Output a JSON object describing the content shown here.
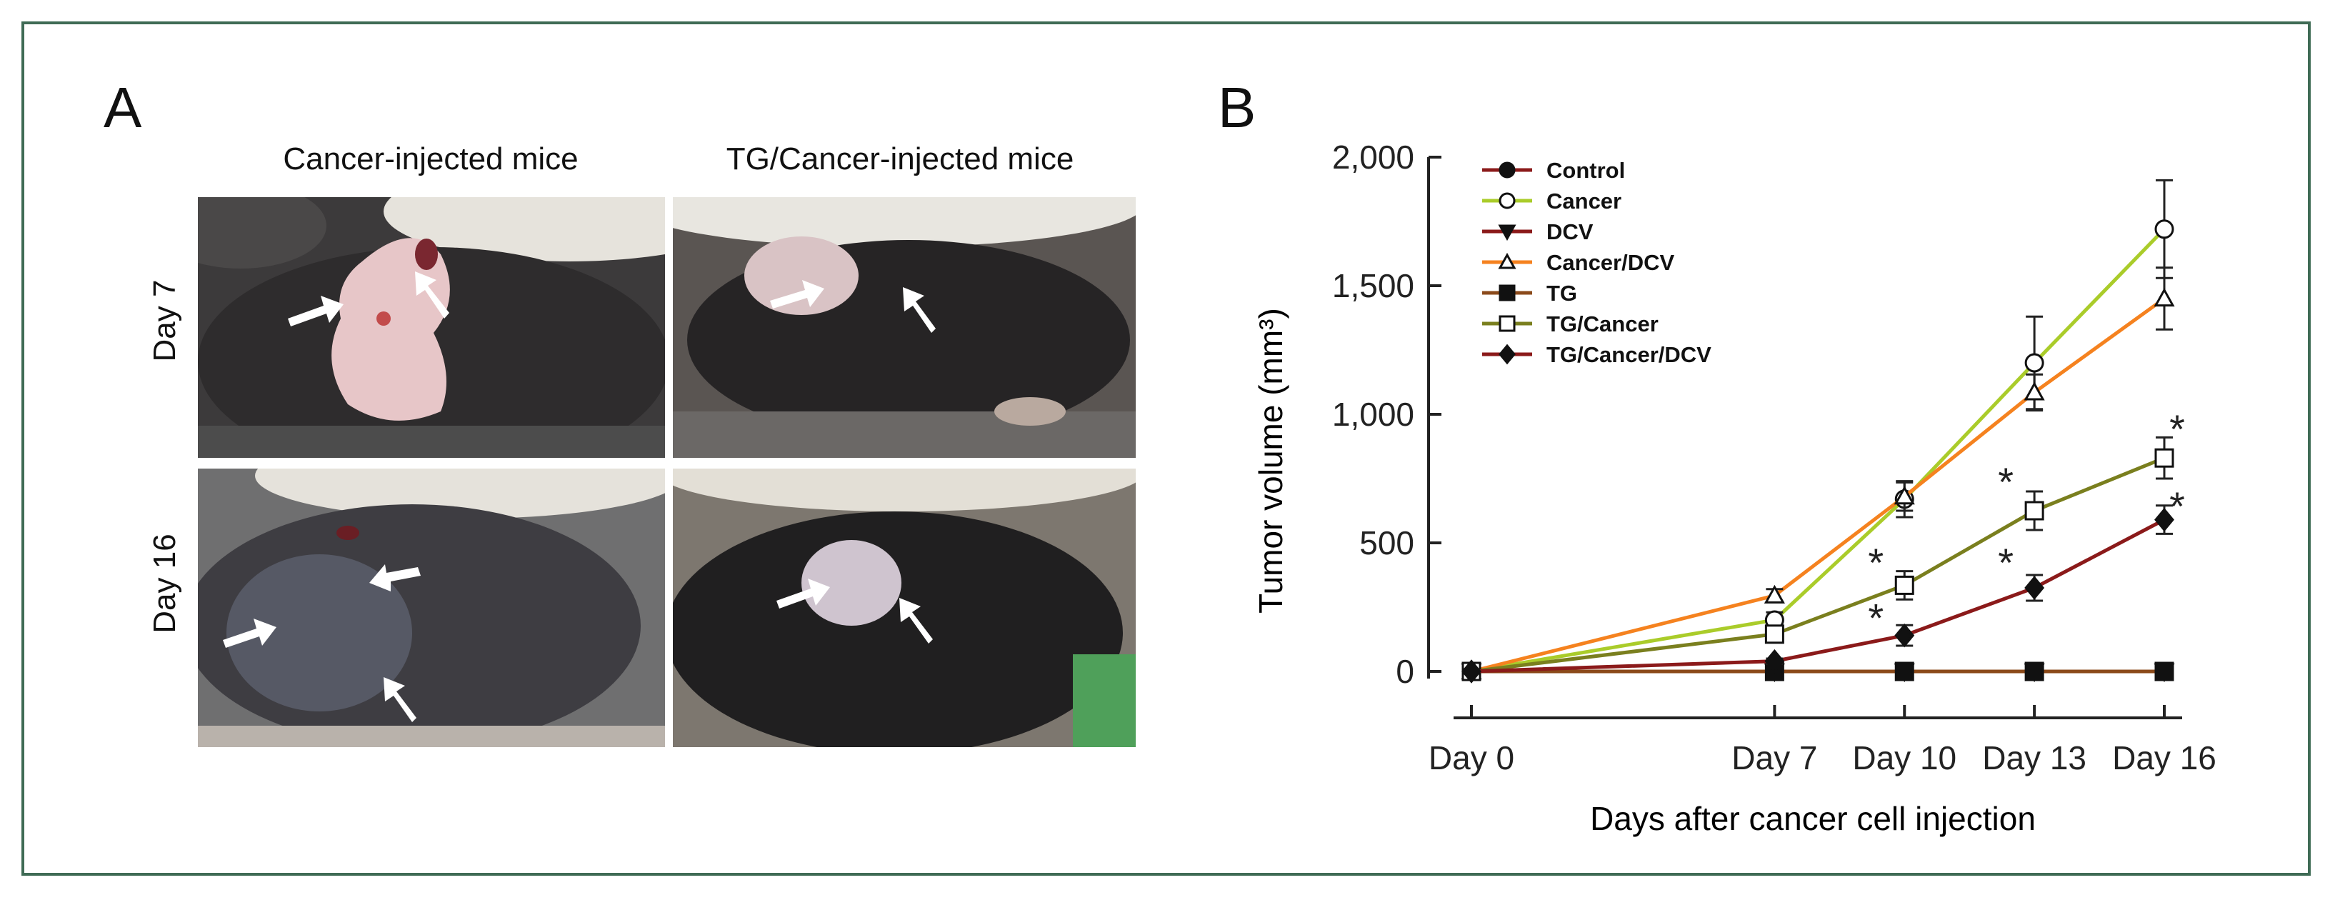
{
  "figure": {
    "panel_a_letter": "A",
    "panel_b_letter": "B",
    "columns": [
      "Cancer-injected mice",
      "TG/Cancer-injected mice"
    ],
    "rows": [
      "Day 7",
      "Day 16"
    ]
  },
  "chart_data": {
    "type": "line",
    "title": "",
    "xlabel": "Days after cancer cell injection",
    "ylabel": "Tumor volume (mm³)",
    "categories": [
      "Day 0",
      "Day 7",
      "Day 10",
      "Day 13",
      "Day 16"
    ],
    "ylim": [
      0,
      2000
    ],
    "yticks": [
      0,
      500,
      1000,
      1500,
      2000
    ],
    "ytick_labels": [
      "0",
      "500",
      "1,000",
      "1,500",
      "2,000"
    ],
    "legend_position": "top-left",
    "grid": false,
    "series": [
      {
        "name": "Control",
        "values": [
          0,
          0,
          0,
          0,
          0
        ],
        "err": [
          0,
          0,
          0,
          0,
          0
        ],
        "color": "#8B1A1A",
        "marker": "circle-filled"
      },
      {
        "name": "Cancer",
        "values": [
          0,
          200,
          670,
          1200,
          1720
        ],
        "err": [
          0,
          30,
          70,
          180,
          190
        ],
        "color": "#AACC2A",
        "marker": "circle-open"
      },
      {
        "name": "DCV",
        "values": [
          0,
          0,
          0,
          0,
          0
        ],
        "err": [
          0,
          0,
          0,
          0,
          0
        ],
        "color": "#8B1A1A",
        "marker": "triangle-down-filled"
      },
      {
        "name": "Cancer/DCV",
        "values": [
          0,
          295,
          680,
          1085,
          1450
        ],
        "err": [
          0,
          25,
          55,
          70,
          120
        ],
        "color": "#F5821F",
        "marker": "triangle-open"
      },
      {
        "name": "TG",
        "values": [
          0,
          0,
          0,
          0,
          0
        ],
        "err": [
          0,
          0,
          0,
          0,
          0
        ],
        "color": "#8B4A1A",
        "marker": "square-filled"
      },
      {
        "name": "TG/Cancer",
        "values": [
          0,
          145,
          335,
          625,
          830
        ],
        "err": [
          0,
          20,
          55,
          75,
          80
        ],
        "color": "#7A7F1E",
        "marker": "square-open"
      },
      {
        "name": "TG/Cancer/DCV",
        "values": [
          0,
          40,
          140,
          325,
          590
        ],
        "err": [
          0,
          10,
          40,
          50,
          55
        ],
        "color": "#8B1A1A",
        "marker": "diamond-filled"
      }
    ],
    "annotations": [
      {
        "text": "*",
        "category": "Day 10",
        "y": 430
      },
      {
        "text": "*",
        "category": "Day 10",
        "y": 215
      },
      {
        "text": "*",
        "category": "Day 13",
        "y": 745
      },
      {
        "text": "*",
        "category": "Day 13",
        "y": 430
      },
      {
        "text": "*",
        "category": "Day 16",
        "y": 950
      },
      {
        "text": "*",
        "category": "Day 16",
        "y": 650
      }
    ]
  }
}
